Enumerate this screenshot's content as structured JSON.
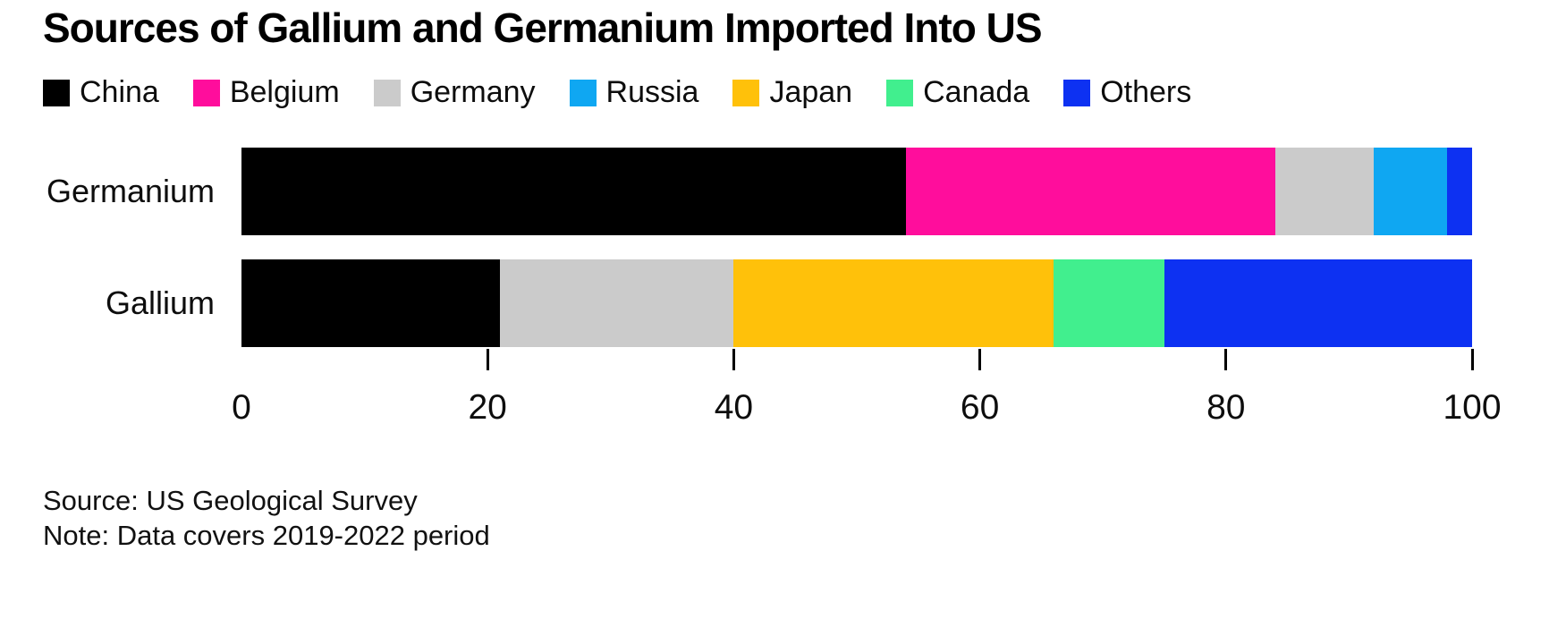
{
  "title": "Sources of Gallium and Germanium Imported Into US",
  "legend": [
    {
      "label": "China",
      "color": "#000000"
    },
    {
      "label": "Belgium",
      "color": "#ff0d9c"
    },
    {
      "label": "Germany",
      "color": "#cbcbcb"
    },
    {
      "label": "Russia",
      "color": "#0fa7f2"
    },
    {
      "label": "Japan",
      "color": "#ffc10a"
    },
    {
      "label": "Canada",
      "color": "#41ef8e"
    },
    {
      "label": "Others",
      "color": "#0d31f2"
    }
  ],
  "colors": {
    "China": "#000000",
    "Belgium": "#ff0d9c",
    "Germany": "#cbcbcb",
    "Russia": "#0fa7f2",
    "Japan": "#ffc10a",
    "Canada": "#41ef8e",
    "Others": "#0d31f2"
  },
  "chart_data": {
    "type": "bar",
    "orientation": "horizontal",
    "stacked": true,
    "title": "Sources of Gallium and Germanium Imported Into US",
    "categories": [
      "Germanium",
      "Gallium"
    ],
    "series": [
      {
        "name": "China",
        "values": [
          54,
          21
        ]
      },
      {
        "name": "Belgium",
        "values": [
          30,
          0
        ]
      },
      {
        "name": "Germany",
        "values": [
          8,
          19
        ]
      },
      {
        "name": "Russia",
        "values": [
          6,
          0
        ]
      },
      {
        "name": "Japan",
        "values": [
          0,
          26
        ]
      },
      {
        "name": "Canada",
        "values": [
          0,
          9
        ]
      },
      {
        "name": "Others",
        "values": [
          2,
          25
        ]
      }
    ],
    "rows": [
      {
        "label": "Germanium",
        "segments": [
          {
            "name": "China",
            "value": 54
          },
          {
            "name": "Belgium",
            "value": 30
          },
          {
            "name": "Germany",
            "value": 8
          },
          {
            "name": "Russia",
            "value": 6
          },
          {
            "name": "Others",
            "value": 2
          }
        ]
      },
      {
        "label": "Gallium",
        "segments": [
          {
            "name": "China",
            "value": 21
          },
          {
            "name": "Germany",
            "value": 19
          },
          {
            "name": "Japan",
            "value": 26
          },
          {
            "name": "Canada",
            "value": 9
          },
          {
            "name": "Others",
            "value": 25
          }
        ]
      }
    ],
    "xlim": [
      0,
      100
    ],
    "x_ticks": [
      0,
      20,
      40,
      60,
      80,
      100
    ],
    "ticks_with_marks": [
      20,
      40,
      60,
      80,
      100
    ],
    "xlabel": "",
    "ylabel": "",
    "grid": false,
    "legend_position": "top"
  },
  "footer": {
    "source": "Source: US Geological Survey",
    "note": "Note: Data covers 2019-2022 period"
  }
}
